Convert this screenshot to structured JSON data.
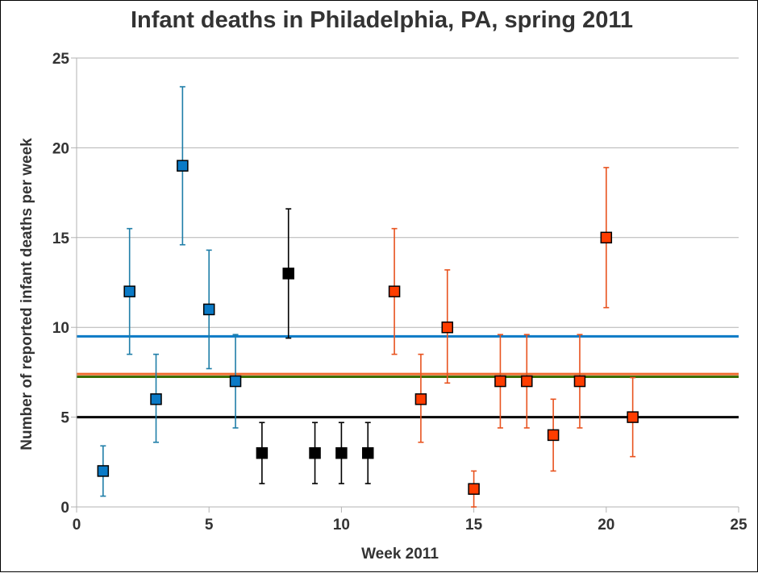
{
  "chart_data": {
    "type": "scatter",
    "title": "Infant deaths in Philadelphia, PA, spring 2011",
    "xlabel": "Week 2011",
    "ylabel": "Number of reported infant deaths per week",
    "xlim": [
      0,
      25
    ],
    "ylim": [
      0,
      25
    ],
    "x_ticks": [
      "0",
      "5",
      "10",
      "15",
      "20",
      "25"
    ],
    "y_ticks": [
      "0",
      "5",
      "10",
      "15",
      "20",
      "25"
    ],
    "grid": "horizontal",
    "legend": "none",
    "colors": {
      "blue": "#0a7ac6",
      "blue_err": "#1f7ea8",
      "black": "#000000",
      "red": "#ff3d00",
      "red_err": "#e8531f",
      "orange_line": "#ef6a2c",
      "green_line": "#3c6e00",
      "grid": "#b3b3b3",
      "axis": "#b3b3b3"
    },
    "series": [
      {
        "color_key": "blue",
        "x": [
          1,
          2,
          3,
          4,
          5,
          6
        ],
        "y": [
          2,
          12,
          6,
          19,
          11,
          7
        ],
        "err_low": [
          0.6,
          8.5,
          3.6,
          14.6,
          7.7,
          4.4
        ],
        "err_high": [
          3.4,
          15.5,
          8.5,
          23.4,
          14.3,
          9.6
        ]
      },
      {
        "color_key": "black",
        "x": [
          7,
          8,
          9,
          10,
          11
        ],
        "y": [
          3,
          13,
          3,
          3,
          3
        ],
        "err_low": [
          1.3,
          9.4,
          1.3,
          1.3,
          1.3
        ],
        "err_high": [
          4.7,
          16.6,
          4.7,
          4.7,
          4.7
        ]
      },
      {
        "color_key": "red",
        "x": [
          12,
          13,
          14,
          15,
          16,
          17,
          18,
          19,
          20,
          21
        ],
        "y": [
          12,
          6,
          10,
          1,
          7,
          7,
          4,
          7,
          15,
          5
        ],
        "err_low": [
          8.5,
          3.6,
          6.9,
          0,
          4.4,
          4.4,
          2.0,
          4.4,
          11.1,
          2.8
        ],
        "err_high": [
          15.5,
          8.5,
          13.2,
          2.0,
          9.6,
          9.6,
          6.0,
          9.6,
          18.9,
          7.2
        ]
      }
    ],
    "reference_lines": [
      {
        "color_key": "blue",
        "y": 9.5
      },
      {
        "color_key": "orange_line",
        "y": 7.4
      },
      {
        "color_key": "green_line",
        "y": 7.25
      },
      {
        "color_key": "black",
        "y": 5.0
      }
    ]
  }
}
